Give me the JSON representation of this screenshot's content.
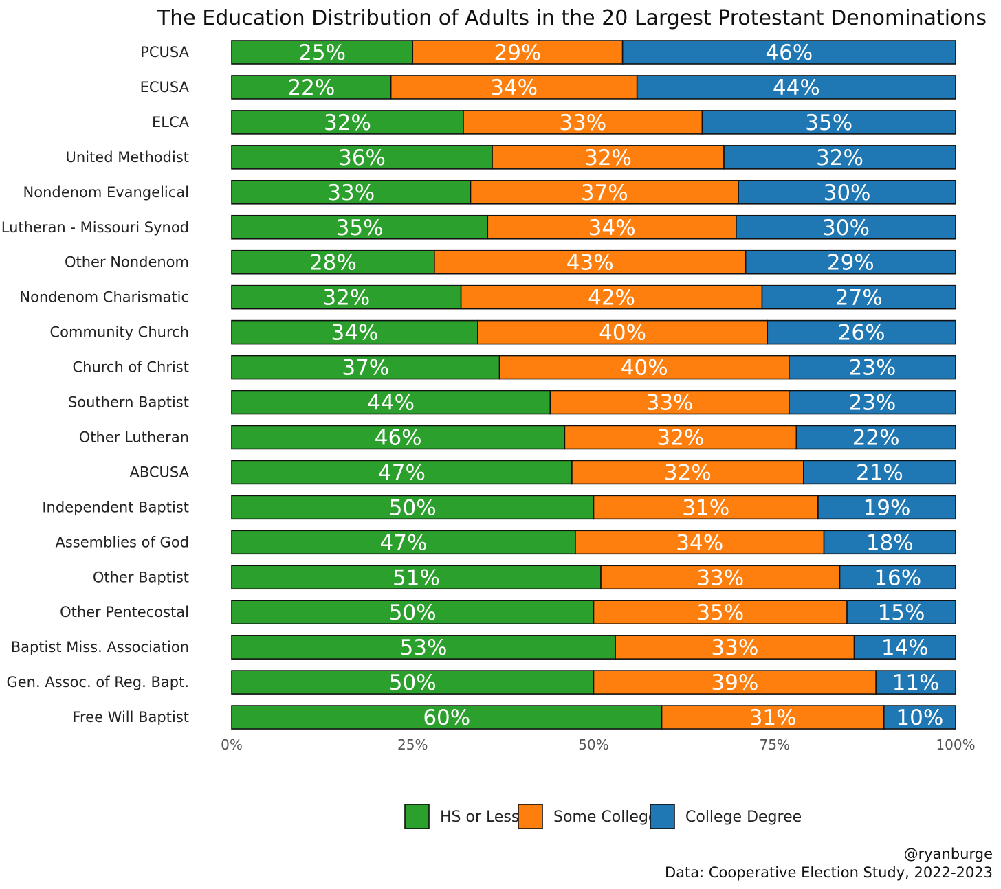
{
  "chart_data": {
    "type": "bar",
    "orientation": "horizontal",
    "stacked": true,
    "title": "The Education Distribution of Adults in the 20 Largest Protestant Denominations",
    "categories": [
      "PCUSA",
      "ECUSA",
      "ELCA",
      "United Methodist",
      "Nondenom Evangelical",
      "Lutheran - Missouri Synod",
      "Other Nondenom",
      "Nondenom Charismatic",
      "Community Church",
      "Church of Christ",
      "Southern Baptist",
      "Other Lutheran",
      "ABCUSA",
      "Independent Baptist",
      "Assemblies of God",
      "Other Baptist",
      "Other Pentecostal",
      "Baptist Miss. Association",
      "Gen. Assoc. of Reg. Bapt.",
      "Free Will Baptist"
    ],
    "series": [
      {
        "name": "HS or Less",
        "color": "#2ca02c",
        "values": [
          25,
          22,
          32,
          36,
          33,
          35,
          28,
          32,
          34,
          37,
          44,
          46,
          47,
          50,
          47,
          51,
          50,
          53,
          50,
          60
        ],
        "labels": [
          "25%",
          "22%",
          "32%",
          "36%",
          "33%",
          "35%",
          "28%",
          "32%",
          "34%",
          "37%",
          "44%",
          "46%",
          "47%",
          "50%",
          "47%",
          "51%",
          "50%",
          "53%",
          "50%",
          "60%"
        ]
      },
      {
        "name": "Some College",
        "color": "#ff7f0e",
        "values": [
          29,
          34,
          33,
          32,
          37,
          34,
          43,
          42,
          40,
          40,
          33,
          32,
          32,
          31,
          34,
          33,
          35,
          33,
          39,
          31
        ],
        "labels": [
          "29%",
          "34%",
          "33%",
          "32%",
          "37%",
          "34%",
          "43%",
          "42%",
          "40%",
          "40%",
          "33%",
          "32%",
          "32%",
          "31%",
          "34%",
          "33%",
          "35%",
          "33%",
          "39%",
          "31%"
        ]
      },
      {
        "name": "College Degree",
        "color": "#1f77b4",
        "values": [
          46,
          44,
          35,
          32,
          30,
          30,
          29,
          27,
          26,
          23,
          23,
          22,
          21,
          19,
          18,
          16,
          15,
          14,
          11,
          10
        ],
        "labels": [
          "46%",
          "44%",
          "35%",
          "32%",
          "30%",
          "30%",
          "29%",
          "27%",
          "26%",
          "23%",
          "23%",
          "22%",
          "21%",
          "19%",
          "18%",
          "16%",
          "15%",
          "14%",
          "11%",
          "10%"
        ]
      }
    ],
    "xlim": [
      0,
      100
    ],
    "x_ticks": [
      0,
      25,
      50,
      75,
      100
    ],
    "x_tick_labels": [
      "0%",
      "25%",
      "50%",
      "75%",
      "100%"
    ],
    "xlabel": "",
    "ylabel": "",
    "grid": false,
    "legend_position": "bottom",
    "caption_lines": [
      "@ryanburge",
      "Data: Cooperative Election Study, 2022-2023"
    ]
  }
}
